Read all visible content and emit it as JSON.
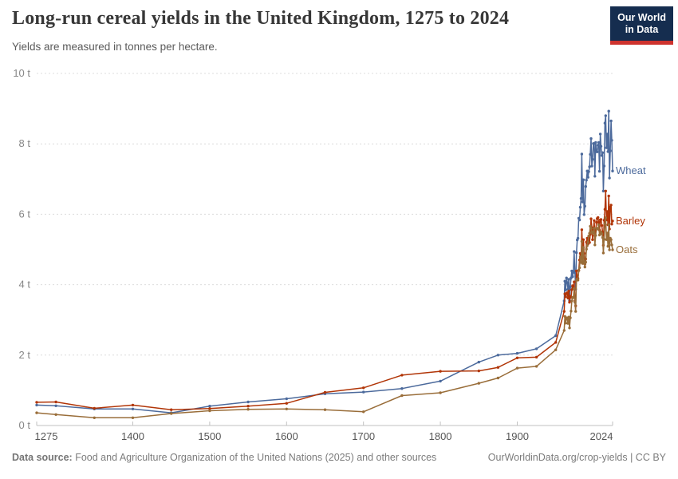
{
  "header": {
    "title": "Long-run cereal yields in the United Kingdom, 1275 to 2024",
    "subtitle": "Yields are measured in tonnes per hectare.",
    "logo": {
      "line1": "Our World",
      "line2": "in Data"
    }
  },
  "footer": {
    "source_label": "Data source:",
    "source_text": "Food and Agriculture Organization of the United Nations (2025) and other sources",
    "link_text": "OurWorldinData.org/crop-yields | CC BY"
  },
  "colors": {
    "wheat": "#4C6A9C",
    "barley": "#B13507",
    "oats": "#996D39",
    "gridline": "#dcdcdc",
    "axis": "#c2c2c2",
    "y_tick_label": "#878787",
    "x_tick_label": "#565656",
    "logo_navy": "#152d4f",
    "logo_red": "#ce332e"
  },
  "chart_data": {
    "type": "line",
    "title": "Long-run cereal yields in the United Kingdom, 1275 to 2024",
    "unit": "tonnes per hectare",
    "grid": "horizontal dashed",
    "legend_position": "right end-of-line labels",
    "x_axis": {
      "range": [
        1275,
        2024
      ],
      "ticks": [
        1275,
        1400,
        1500,
        1600,
        1700,
        1800,
        1900,
        2024
      ]
    },
    "y_axis": {
      "range": [
        0,
        10
      ],
      "tick_values": [
        0,
        2,
        4,
        6,
        8,
        10
      ],
      "tick_labels": [
        "0 t",
        "2 t",
        "4 t",
        "6 t",
        "8 t",
        "10 t"
      ]
    },
    "series": [
      {
        "name": "Wheat",
        "color": "#4C6A9C",
        "points": [
          [
            1275,
            0.58
          ],
          [
            1300,
            0.56
          ],
          [
            1350,
            0.47
          ],
          [
            1400,
            0.47
          ],
          [
            1450,
            0.36
          ],
          [
            1500,
            0.55
          ],
          [
            1550,
            0.67
          ],
          [
            1600,
            0.76
          ],
          [
            1650,
            0.9
          ],
          [
            1700,
            0.95
          ],
          [
            1750,
            1.05
          ],
          [
            1800,
            1.26
          ],
          [
            1850,
            1.8
          ],
          [
            1875,
            2.0
          ],
          [
            1900,
            2.05
          ],
          [
            1925,
            2.18
          ],
          [
            1950,
            2.55
          ],
          [
            1961,
            3.54
          ],
          [
            1962,
            4.1
          ],
          [
            1963,
            3.85
          ],
          [
            1964,
            4.19
          ],
          [
            1965,
            4.06
          ],
          [
            1966,
            3.87
          ],
          [
            1967,
            4.15
          ],
          [
            1968,
            3.55
          ],
          [
            1969,
            3.94
          ],
          [
            1970,
            4.19
          ],
          [
            1971,
            4.39
          ],
          [
            1972,
            4.23
          ],
          [
            1973,
            4.38
          ],
          [
            1974,
            4.94
          ],
          [
            1975,
            4.34
          ],
          [
            1976,
            3.87
          ],
          [
            1977,
            4.91
          ],
          [
            1978,
            5.27
          ],
          [
            1979,
            5.32
          ],
          [
            1980,
            5.89
          ],
          [
            1981,
            5.84
          ],
          [
            1982,
            6.2
          ],
          [
            1983,
            6.45
          ],
          [
            1984,
            7.71
          ],
          [
            1985,
            6.35
          ],
          [
            1986,
            6.98
          ],
          [
            1987,
            5.99
          ],
          [
            1988,
            6.23
          ],
          [
            1989,
            6.79
          ],
          [
            1990,
            6.97
          ],
          [
            1991,
            7.23
          ],
          [
            1992,
            7.05
          ],
          [
            1993,
            7.21
          ],
          [
            1994,
            7.35
          ],
          [
            1995,
            7.7
          ],
          [
            1996,
            8.15
          ],
          [
            1997,
            7.37
          ],
          [
            1998,
            7.56
          ],
          [
            1999,
            8.01
          ],
          [
            2000,
            8.01
          ],
          [
            2001,
            7.08
          ],
          [
            2002,
            8.04
          ],
          [
            2003,
            7.78
          ],
          [
            2004,
            7.77
          ],
          [
            2005,
            7.96
          ],
          [
            2006,
            8.04
          ],
          [
            2007,
            7.22
          ],
          [
            2008,
            8.28
          ],
          [
            2009,
            7.93
          ],
          [
            2010,
            7.67
          ],
          [
            2011,
            7.75
          ],
          [
            2012,
            6.66
          ],
          [
            2013,
            7.37
          ],
          [
            2014,
            8.59
          ],
          [
            2015,
            8.8
          ],
          [
            2016,
            7.89
          ],
          [
            2017,
            8.28
          ],
          [
            2018,
            7.78
          ],
          [
            2019,
            8.93
          ],
          [
            2020,
            7.03
          ],
          [
            2021,
            7.8
          ],
          [
            2022,
            8.65
          ],
          [
            2023,
            8.1
          ],
          [
            2024,
            7.23
          ]
        ]
      },
      {
        "name": "Barley",
        "color": "#B13507",
        "points": [
          [
            1275,
            0.66
          ],
          [
            1300,
            0.67
          ],
          [
            1350,
            0.49
          ],
          [
            1400,
            0.58
          ],
          [
            1450,
            0.45
          ],
          [
            1500,
            0.48
          ],
          [
            1550,
            0.55
          ],
          [
            1600,
            0.63
          ],
          [
            1650,
            0.94
          ],
          [
            1700,
            1.07
          ],
          [
            1750,
            1.43
          ],
          [
            1800,
            1.54
          ],
          [
            1850,
            1.55
          ],
          [
            1875,
            1.65
          ],
          [
            1900,
            1.92
          ],
          [
            1925,
            1.94
          ],
          [
            1950,
            2.36
          ],
          [
            1961,
            3.24
          ],
          [
            1962,
            3.74
          ],
          [
            1963,
            3.66
          ],
          [
            1964,
            3.75
          ],
          [
            1965,
            3.77
          ],
          [
            1966,
            3.62
          ],
          [
            1967,
            3.82
          ],
          [
            1968,
            3.5
          ],
          [
            1969,
            3.67
          ],
          [
            1970,
            3.64
          ],
          [
            1971,
            3.86
          ],
          [
            1972,
            3.97
          ],
          [
            1973,
            3.93
          ],
          [
            1974,
            4.08
          ],
          [
            1975,
            3.54
          ],
          [
            1976,
            3.4
          ],
          [
            1977,
            4.39
          ],
          [
            1978,
            4.24
          ],
          [
            1979,
            4.18
          ],
          [
            1980,
            4.41
          ],
          [
            1981,
            4.7
          ],
          [
            1982,
            4.89
          ],
          [
            1983,
            4.63
          ],
          [
            1984,
            5.56
          ],
          [
            1985,
            5.03
          ],
          [
            1986,
            5.28
          ],
          [
            1987,
            4.89
          ],
          [
            1988,
            4.58
          ],
          [
            1989,
            4.73
          ],
          [
            1990,
            5.21
          ],
          [
            1991,
            5.32
          ],
          [
            1992,
            5.16
          ],
          [
            1993,
            5.35
          ],
          [
            1994,
            5.2
          ],
          [
            1995,
            5.43
          ],
          [
            1996,
            5.87
          ],
          [
            1997,
            5.62
          ],
          [
            1998,
            5.28
          ],
          [
            1999,
            5.55
          ],
          [
            2000,
            5.82
          ],
          [
            2001,
            5.39
          ],
          [
            2002,
            5.54
          ],
          [
            2003,
            5.77
          ],
          [
            2004,
            5.88
          ],
          [
            2005,
            5.91
          ],
          [
            2006,
            5.77
          ],
          [
            2007,
            5.55
          ],
          [
            2008,
            5.84
          ],
          [
            2009,
            5.85
          ],
          [
            2010,
            5.68
          ],
          [
            2011,
            5.49
          ],
          [
            2012,
            5.12
          ],
          [
            2013,
            5.83
          ],
          [
            2014,
            6.14
          ],
          [
            2015,
            6.66
          ],
          [
            2016,
            5.84
          ],
          [
            2017,
            6.08
          ],
          [
            2018,
            5.7
          ],
          [
            2019,
            6.52
          ],
          [
            2020,
            5.58
          ],
          [
            2021,
            6.2
          ],
          [
            2022,
            6.26
          ],
          [
            2023,
            5.72
          ],
          [
            2024,
            5.81
          ]
        ]
      },
      {
        "name": "Oats",
        "color": "#996D39",
        "points": [
          [
            1275,
            0.36
          ],
          [
            1300,
            0.31
          ],
          [
            1350,
            0.22
          ],
          [
            1400,
            0.22
          ],
          [
            1450,
            0.34
          ],
          [
            1500,
            0.42
          ],
          [
            1550,
            0.46
          ],
          [
            1600,
            0.47
          ],
          [
            1650,
            0.45
          ],
          [
            1700,
            0.39
          ],
          [
            1750,
            0.85
          ],
          [
            1800,
            0.93
          ],
          [
            1850,
            1.2
          ],
          [
            1875,
            1.35
          ],
          [
            1900,
            1.63
          ],
          [
            1925,
            1.68
          ],
          [
            1950,
            2.15
          ],
          [
            1961,
            2.7
          ],
          [
            1962,
            3.1
          ],
          [
            1963,
            2.91
          ],
          [
            1964,
            3.06
          ],
          [
            1965,
            3.04
          ],
          [
            1966,
            2.9
          ],
          [
            1967,
            3.08
          ],
          [
            1968,
            2.77
          ],
          [
            1969,
            3.06
          ],
          [
            1970,
            3.25
          ],
          [
            1971,
            3.54
          ],
          [
            1972,
            3.64
          ],
          [
            1973,
            3.63
          ],
          [
            1974,
            3.89
          ],
          [
            1975,
            3.5
          ],
          [
            1976,
            3.24
          ],
          [
            1977,
            4.13
          ],
          [
            1978,
            4.16
          ],
          [
            1979,
            4.13
          ],
          [
            1980,
            4.4
          ],
          [
            1981,
            4.48
          ],
          [
            1982,
            4.79
          ],
          [
            1983,
            4.63
          ],
          [
            1984,
            5.23
          ],
          [
            1985,
            4.6
          ],
          [
            1986,
            5.06
          ],
          [
            1987,
            4.66
          ],
          [
            1988,
            4.5
          ],
          [
            1989,
            4.64
          ],
          [
            1990,
            5.01
          ],
          [
            1991,
            5.11
          ],
          [
            1992,
            5.21
          ],
          [
            1993,
            5.38
          ],
          [
            1994,
            5.46
          ],
          [
            1995,
            5.66
          ],
          [
            1996,
            5.6
          ],
          [
            1997,
            5.5
          ],
          [
            1998,
            5.46
          ],
          [
            1999,
            5.5
          ],
          [
            2000,
            5.6
          ],
          [
            2001,
            5.13
          ],
          [
            2002,
            5.4
          ],
          [
            2003,
            5.6
          ],
          [
            2004,
            5.58
          ],
          [
            2005,
            5.6
          ],
          [
            2006,
            5.7
          ],
          [
            2007,
            5.41
          ],
          [
            2008,
            5.45
          ],
          [
            2009,
            5.5
          ],
          [
            2010,
            5.45
          ],
          [
            2011,
            5.34
          ],
          [
            2012,
            4.9
          ],
          [
            2013,
            5.29
          ],
          [
            2014,
            5.73
          ],
          [
            2015,
            5.9
          ],
          [
            2016,
            5.28
          ],
          [
            2017,
            5.47
          ],
          [
            2018,
            5.09
          ],
          [
            2019,
            5.7
          ],
          [
            2020,
            4.99
          ],
          [
            2021,
            5.32
          ],
          [
            2022,
            5.28
          ],
          [
            2023,
            5.13
          ],
          [
            2024,
            4.99
          ]
        ]
      }
    ]
  }
}
